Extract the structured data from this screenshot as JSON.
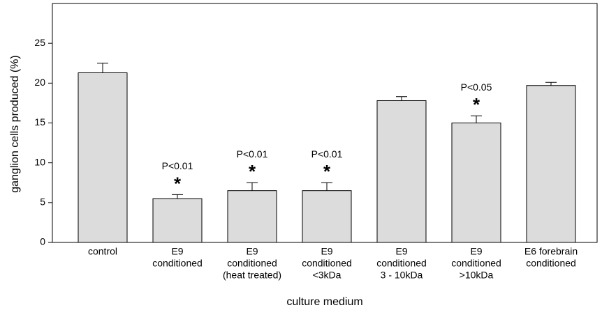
{
  "chart_data": {
    "type": "bar",
    "categories": [
      [
        "control"
      ],
      [
        "E9",
        "conditioned"
      ],
      [
        "E9",
        "conditioned",
        "(heat treated)"
      ],
      [
        "E9",
        "conditioned",
        "<3kDa"
      ],
      [
        "E9",
        "conditioned",
        "3 - 10kDa"
      ],
      [
        "E9",
        "conditioned",
        ">10kDa"
      ],
      [
        "E6 forebrain",
        "conditioned"
      ]
    ],
    "values": [
      21.3,
      5.5,
      6.5,
      6.5,
      17.8,
      15.0,
      19.7
    ],
    "errors": [
      1.2,
      0.5,
      1.0,
      1.0,
      0.5,
      0.9,
      0.4
    ],
    "annotations": [
      null,
      "P<0.01",
      "P<0.01",
      "P<0.01",
      null,
      "P<0.05",
      null
    ],
    "significance_marks": [
      null,
      "*",
      "*",
      "*",
      null,
      "*",
      null
    ],
    "color": "#dcdcdc",
    "ylim": [
      0,
      30
    ],
    "yticks": [
      0,
      5,
      10,
      15,
      20,
      25
    ],
    "y_label": "ganglion cells produced (%)",
    "x_label": "culture medium"
  }
}
